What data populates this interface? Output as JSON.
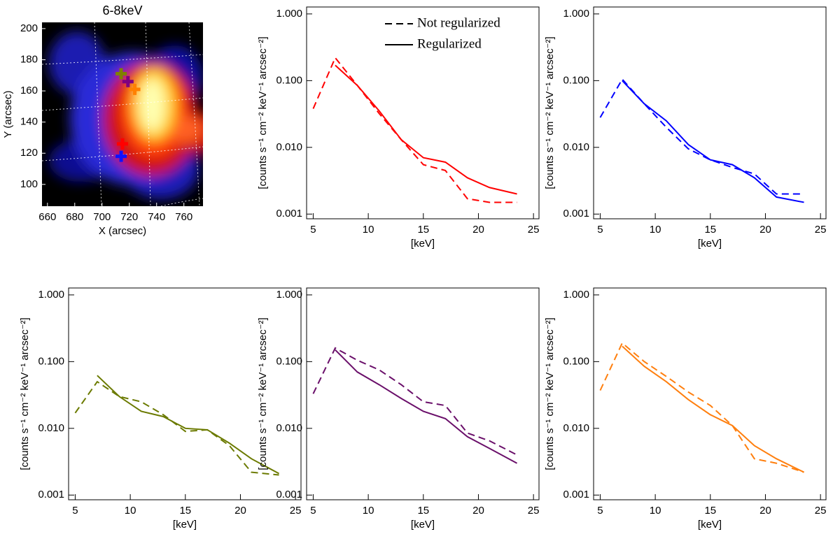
{
  "chart_data": [
    {
      "type": "image",
      "title": "6-8keV",
      "xlabel": "X (arcsec)",
      "ylabel": "Y (arcsec)",
      "xlim": [
        656,
        774
      ],
      "ylim": [
        86,
        204
      ],
      "xticks": [
        660,
        680,
        700,
        720,
        740,
        760
      ],
      "yticks": [
        100,
        120,
        140,
        160,
        180,
        200
      ],
      "markers": {
        "x": [
          715,
          714,
          714,
          719,
          724
        ],
        "y": [
          126,
          118,
          171,
          166,
          161
        ],
        "colors": [
          "#ff0000",
          "#1010ff",
          "#808000",
          "#800080",
          "#ff8000"
        ]
      }
    },
    {
      "type": "line",
      "ylog": true,
      "xlabel": "[keV]",
      "ylabel": "[counts s⁻¹ cm⁻² keV⁻¹ arcsec⁻²]",
      "legend": "upper right",
      "xlim": [
        4.4,
        25.5
      ],
      "ylim": [
        0.00085,
        1.27
      ],
      "xticks": [
        5,
        10,
        15,
        20,
        25
      ],
      "yticks": [
        0.001,
        {
          "value": 0.01,
          "label": "0.010"
        },
        {
          "value": 0.1,
          "label": "0.100"
        },
        {
          "value": 1,
          "label": "1.000"
        }
      ],
      "x": [
        5,
        7,
        9,
        11,
        13,
        15,
        17,
        19,
        21,
        23.5
      ],
      "series": [
        {
          "name": "Not regularized",
          "color": "#ff0000",
          "dash": true,
          "values": [
            0.038,
            0.22,
            0.085,
            0.032,
            0.013,
            0.0055,
            0.0045,
            0.0017,
            0.0015,
            0.0015
          ]
        },
        {
          "name": "Regularized",
          "color": "#ff0000",
          "dash": false,
          "values": [
            null,
            0.17,
            0.085,
            0.035,
            0.013,
            0.007,
            0.006,
            0.0035,
            0.0025,
            0.002
          ]
        }
      ]
    },
    {
      "type": "line",
      "ylog": true,
      "xlabel": "[keV]",
      "ylabel": "[counts s⁻¹ cm⁻² keV⁻¹ arcsec⁻²]",
      "xlim": [
        4.4,
        25.5
      ],
      "ylim": [
        0.00085,
        1.27
      ],
      "xticks": [
        5,
        10,
        15,
        20,
        25
      ],
      "yticks": [
        0.001,
        {
          "value": 0.01,
          "label": "0.010"
        },
        {
          "value": 0.1,
          "label": "0.100"
        },
        {
          "value": 1,
          "label": "1.000"
        }
      ],
      "x": [
        5,
        7,
        9,
        11,
        13,
        15,
        17,
        19,
        21,
        23.5
      ],
      "series": [
        {
          "color": "#0000ff",
          "dash": true,
          "values": [
            0.028,
            0.105,
            0.045,
            0.02,
            0.0095,
            0.0065,
            0.005,
            0.004,
            0.002,
            0.002
          ]
        },
        {
          "color": "#0000ff",
          "dash": false,
          "values": [
            null,
            0.1,
            0.045,
            0.025,
            0.011,
            0.0065,
            0.0055,
            0.0035,
            0.0018,
            0.0015
          ]
        }
      ]
    },
    {
      "type": "line",
      "ylog": true,
      "xlabel": "[keV]",
      "ylabel": "[counts s⁻¹ cm⁻² keV⁻¹ arcsec⁻²]",
      "xlim": [
        4.4,
        25.5
      ],
      "ylim": [
        0.00085,
        1.27
      ],
      "xticks": [
        5,
        10,
        15,
        20,
        25
      ],
      "yticks": [
        0.001,
        {
          "value": 0.01,
          "label": "0.010"
        },
        {
          "value": 0.1,
          "label": "0.100"
        },
        {
          "value": 1,
          "label": "1.000"
        }
      ],
      "x": [
        5,
        7,
        9,
        11,
        13,
        15,
        17,
        19,
        21,
        23.5
      ],
      "series": [
        {
          "color": "#6b7a00",
          "dash": true,
          "values": [
            0.017,
            0.05,
            0.03,
            0.025,
            0.016,
            0.009,
            0.0095,
            0.0055,
            0.0022,
            0.002
          ]
        },
        {
          "color": "#6b7a00",
          "dash": false,
          "values": [
            null,
            0.062,
            0.03,
            0.018,
            0.015,
            0.01,
            0.0095,
            0.006,
            0.0035,
            0.0021
          ]
        }
      ]
    },
    {
      "type": "line",
      "ylog": true,
      "xlabel": "[keV]",
      "ylabel": "[counts s⁻¹ cm⁻² keV⁻¹ arcsec⁻²]",
      "xlim": [
        4.4,
        25.5
      ],
      "ylim": [
        0.00085,
        1.27
      ],
      "xticks": [
        5,
        10,
        15,
        20,
        25
      ],
      "yticks": [
        0.001,
        {
          "value": 0.01,
          "label": "0.010"
        },
        {
          "value": 0.1,
          "label": "0.100"
        },
        {
          "value": 1,
          "label": "1.000"
        }
      ],
      "x": [
        5,
        7,
        9,
        11,
        13,
        15,
        17,
        19,
        21,
        23.5
      ],
      "series": [
        {
          "color": "#6a0f6a",
          "dash": true,
          "values": [
            0.033,
            0.16,
            0.105,
            0.075,
            0.045,
            0.025,
            0.022,
            0.0085,
            0.0065,
            0.004
          ]
        },
        {
          "color": "#6a0f6a",
          "dash": false,
          "values": [
            null,
            0.15,
            0.07,
            0.045,
            0.028,
            0.018,
            0.014,
            0.0075,
            0.005,
            0.003
          ]
        }
      ]
    },
    {
      "type": "line",
      "ylog": true,
      "xlabel": "[keV]",
      "ylabel": "[counts s⁻¹ cm⁻² keV⁻¹ arcsec⁻²]",
      "xlim": [
        4.4,
        25.5
      ],
      "ylim": [
        0.00085,
        1.27
      ],
      "xticks": [
        5,
        10,
        15,
        20,
        25
      ],
      "yticks": [
        0.001,
        {
          "value": 0.01,
          "label": "0.010"
        },
        {
          "value": 0.1,
          "label": "0.100"
        },
        {
          "value": 1,
          "label": "1.000"
        }
      ],
      "x": [
        5,
        7,
        9,
        11,
        13,
        15,
        17,
        19,
        21,
        23.5
      ],
      "series": [
        {
          "color": "#ff7f0e",
          "dash": true,
          "values": [
            0.037,
            0.19,
            0.1,
            0.06,
            0.035,
            0.022,
            0.011,
            0.0035,
            0.003,
            0.0022
          ]
        },
        {
          "color": "#ff7f0e",
          "dash": false,
          "values": [
            null,
            0.17,
            0.085,
            0.05,
            0.027,
            0.016,
            0.011,
            0.0055,
            0.0035,
            0.0022
          ]
        }
      ]
    }
  ]
}
